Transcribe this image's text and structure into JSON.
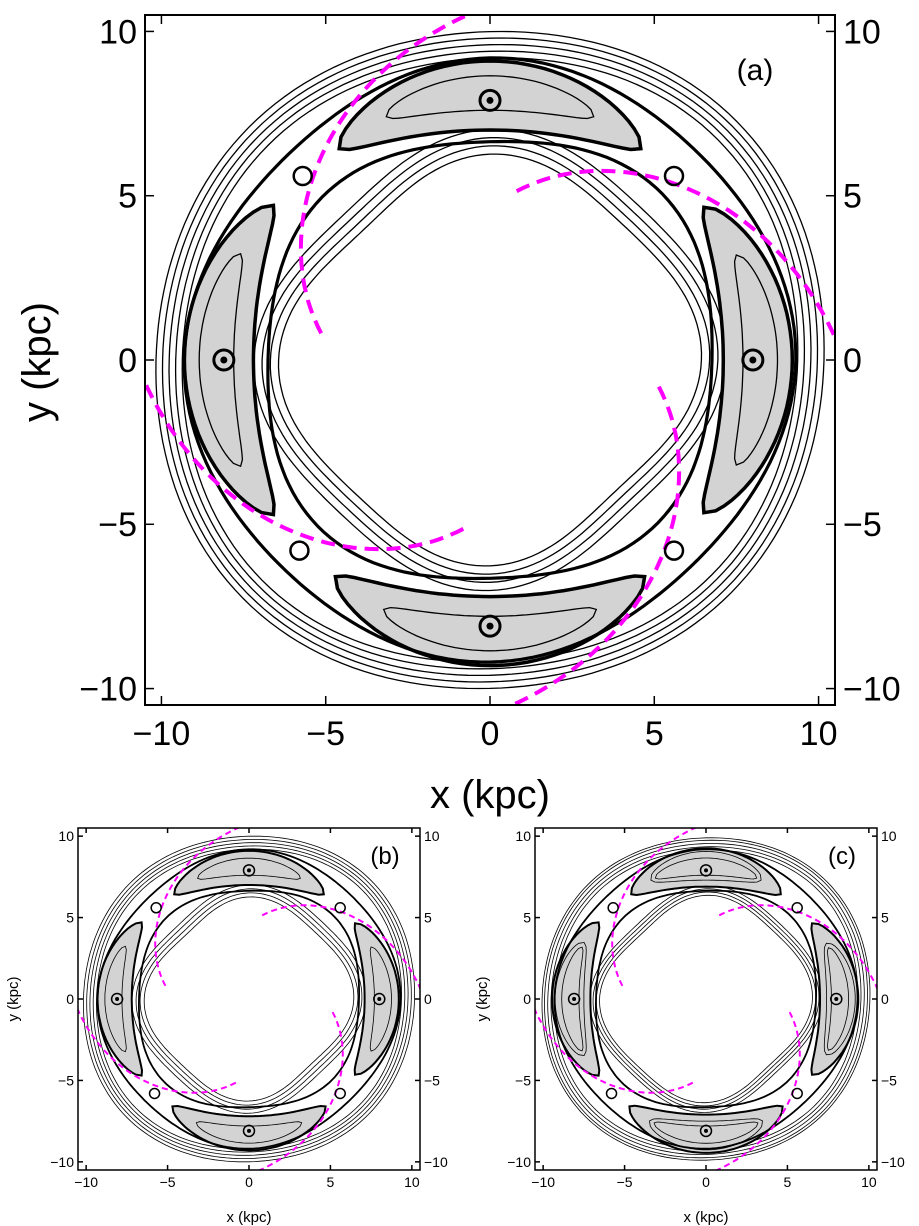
{
  "figure": {
    "panels": [
      {
        "id": "panel-a",
        "label": "(a)",
        "xlabel": "x (kpc)",
        "ylabel": "y (kpc)"
      },
      {
        "id": "panel-b",
        "label": "(b)",
        "xlabel": "x (kpc)",
        "ylabel": "y (kpc)"
      },
      {
        "id": "panel-c",
        "label": "(c)",
        "xlabel": "x (kpc)",
        "ylabel": "y (kpc)"
      }
    ]
  },
  "colors": {
    "contour": "#000000",
    "fill": "#d3d3d3",
    "arm": "#ff00ff"
  },
  "chart_data": [
    {
      "type": "contour",
      "label": "(a)",
      "xlabel": "x (kpc)",
      "ylabel": "y (kpc)",
      "xlim": [
        -10.5,
        10.5
      ],
      "ylim": [
        -10.5,
        10.5
      ],
      "xticks": [
        -10,
        -5,
        0,
        5,
        10
      ],
      "yticks": [
        -10,
        -5,
        0,
        5,
        10
      ],
      "tick_labels": [
        "−10",
        "−5",
        "0",
        "5",
        "10"
      ],
      "stable_points": [
        [
          0,
          7.9
        ],
        [
          8,
          0
        ],
        [
          0,
          -8.1
        ],
        [
          -8.1,
          0
        ]
      ],
      "saddle_points": [
        [
          -5.7,
          5.6
        ],
        [
          5.6,
          5.6
        ],
        [
          5.6,
          -5.8
        ],
        [
          -5.8,
          -5.8
        ]
      ],
      "spiral_arms": 4,
      "banana_regions": 4
    },
    {
      "type": "contour",
      "label": "(b)",
      "xlabel": "x (kpc)",
      "ylabel": "y (kpc)",
      "xlim": [
        -10.5,
        10.5
      ],
      "ylim": [
        -10.5,
        10.5
      ],
      "xticks": [
        -10,
        -5,
        0,
        5,
        10
      ],
      "yticks": [
        -10,
        -5,
        0,
        5,
        10
      ],
      "tick_labels": [
        "−10",
        "−5",
        "0",
        "5",
        "10"
      ],
      "stable_points": [
        [
          0,
          7.9
        ],
        [
          8,
          0
        ],
        [
          0,
          -8.1
        ],
        [
          -8.1,
          0
        ]
      ],
      "saddle_points": [
        [
          -5.7,
          5.6
        ],
        [
          5.6,
          5.6
        ],
        [
          5.6,
          -5.8
        ],
        [
          -5.8,
          -5.8
        ]
      ],
      "spiral_arms": 4,
      "banana_regions": 4
    },
    {
      "type": "contour",
      "label": "(c)",
      "xlabel": "x (kpc)",
      "ylabel": "y (kpc)",
      "xlim": [
        -10.5,
        10.5
      ],
      "ylim": [
        -10.5,
        10.5
      ],
      "xticks": [
        -10,
        -5,
        0,
        5,
        10
      ],
      "yticks": [
        -10,
        -5,
        0,
        5,
        10
      ],
      "tick_labels": [
        "−10",
        "−5",
        "0",
        "5",
        "10"
      ],
      "stable_points": [
        [
          0,
          7.9
        ],
        [
          8,
          0
        ],
        [
          0,
          -8.1
        ],
        [
          -8.1,
          0
        ]
      ],
      "saddle_points": [
        [
          -5.7,
          5.6
        ],
        [
          5.6,
          5.6
        ],
        [
          5.6,
          -5.8
        ],
        [
          -5.8,
          -5.8
        ]
      ],
      "spiral_arms": 4,
      "banana_regions": 4
    }
  ]
}
